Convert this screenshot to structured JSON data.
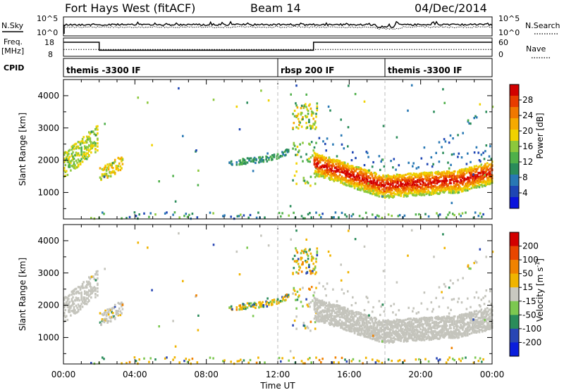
{
  "header": {
    "radar": "Fort Hays West (fitACF)",
    "beam": "Beam 14",
    "date": "04/Dec/2014"
  },
  "noise_panel": {
    "left_label": "N.Sky",
    "right_label": "N.Search",
    "left_ticks": [
      "10^5",
      "10^0"
    ],
    "right_ticks": [
      "10^5",
      "10^0"
    ]
  },
  "freq_panel": {
    "left_label_line1": "Freq.",
    "left_label_line2": "[MHz]",
    "right_label": "Nave",
    "left_ticks": [
      "18",
      "8"
    ],
    "right_ticks": [
      "60",
      "0"
    ],
    "freq_steps": [
      {
        "t0": 0.0,
        "t1": 2.0,
        "mhz": 16.5
      },
      {
        "t0": 2.0,
        "t1": 14.0,
        "mhz": 10.8
      },
      {
        "t0": 14.0,
        "t1": 24.0,
        "mhz": 16.5
      }
    ],
    "nave_level": 20
  },
  "cpid": {
    "label": "CPID",
    "segments": [
      {
        "name": "themis -3300 IF",
        "start_hour": 0
      },
      {
        "name": "rbsp 200 IF",
        "start_hour": 12
      },
      {
        "name": "themis -3300 IF",
        "start_hour": 18
      }
    ]
  },
  "chart_data": [
    {
      "type": "heatmap",
      "name": "power",
      "ylabel": "Slant Range [km]",
      "xlabel": "Time UT",
      "x_ticks": [
        "00:00",
        "04:00",
        "08:00",
        "12:00",
        "16:00",
        "20:00",
        "00:00"
      ],
      "x_range_hours": [
        0,
        24
      ],
      "yticks": [
        1000,
        2000,
        3000,
        4000
      ],
      "ylim": [
        180,
        4500
      ],
      "colorbar_label": "Power [dB]",
      "colorbar_ticks": [
        "28",
        "24",
        "20",
        "16",
        "12",
        "8",
        "4"
      ],
      "colorbar_colors": [
        "#0a14dc",
        "#1e46b4",
        "#2878b4",
        "#2a8c5a",
        "#4fb04a",
        "#8cc83c",
        "#f0d200",
        "#f5aa00",
        "#f07800",
        "#e83c00",
        "#d20000"
      ],
      "echo_regions": [
        {
          "t0": 0.0,
          "t1": 1.9,
          "r0": 1500,
          "r1": 2900,
          "level": 5
        },
        {
          "t0": 2.0,
          "t1": 3.3,
          "r0": 1250,
          "r1": 1800,
          "level": 6
        },
        {
          "t0": 9.2,
          "t1": 12.7,
          "r0": 1750,
          "r1": 2300,
          "level": 3
        },
        {
          "t0": 12.8,
          "t1": 14.2,
          "r0": 3000,
          "r1": 3800,
          "level": 5
        },
        {
          "t0": 14.0,
          "t1": 24.0,
          "r0": 1000,
          "r1": 2300,
          "level": 7
        },
        {
          "t0": 20.5,
          "t1": 23.5,
          "r0": 2000,
          "r1": 3200,
          "level": 2
        },
        {
          "t0": 1.5,
          "t1": 23.5,
          "r0": 200,
          "r1": 450,
          "level": 4
        }
      ]
    },
    {
      "type": "heatmap",
      "name": "velocity",
      "ylabel": "Slant Range [km]",
      "xlabel": "Time UT",
      "yticks": [
        1000,
        2000,
        3000,
        4000
      ],
      "ylim": [
        180,
        4500
      ],
      "colorbar_label": "Velocity [m s",
      "colorbar_label_sup": "-1",
      "colorbar_label_end": "]",
      "colorbar_ticks": [
        "200",
        "100",
        "50",
        "15",
        "-15",
        "-50",
        "-100",
        "-200"
      ],
      "colorbar_colors": [
        "#0a1edc",
        "#2846b4",
        "#2a8c5a",
        "#7cc850",
        "#c8c8c0",
        "#f0b400",
        "#f08200",
        "#e84600",
        "#d20000"
      ],
      "ground_scatter_color": "#c4c4bc"
    }
  ]
}
